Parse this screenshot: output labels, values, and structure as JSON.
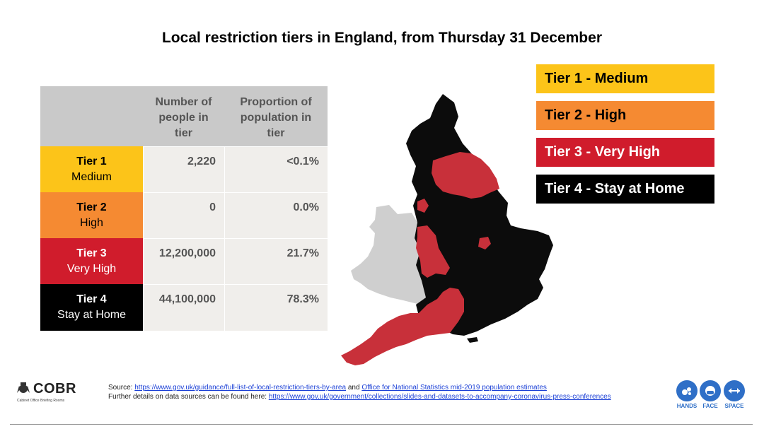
{
  "title": "Local restriction tiers in England, from Thursday 31 December",
  "table": {
    "headers": [
      "",
      "Number of people in tier",
      "Proportion of population in tier"
    ],
    "header_lines": {
      "col2": [
        "Number of",
        "people in",
        "tier"
      ],
      "col3": [
        "Proportion of",
        "population in",
        "tier"
      ]
    },
    "rows": [
      {
        "tier": "Tier 1",
        "name": "Medium",
        "people": "2,220",
        "proportion": "<0.1%",
        "color": "#fcc419",
        "text_color": "#000000"
      },
      {
        "tier": "Tier 2",
        "name": "High",
        "people": "0",
        "proportion": "0.0%",
        "color": "#f58a32",
        "text_color": "#000000"
      },
      {
        "tier": "Tier 3",
        "name": "Very High",
        "people": "12,200,000",
        "proportion": "21.7%",
        "color": "#d01c2c",
        "text_color": "#ffffff"
      },
      {
        "tier": "Tier 4",
        "name": "Stay at Home",
        "people": "44,100,000",
        "proportion": "78.3%",
        "color": "#000000",
        "text_color": "#ffffff"
      }
    ]
  },
  "legend": [
    {
      "label": "Tier 1 - Medium",
      "color": "#fcc419",
      "text_color": "#000000"
    },
    {
      "label": "Tier 2 - High",
      "color": "#f58a32",
      "text_color": "#000000"
    },
    {
      "label": "Tier 3 - Very High",
      "color": "#d01c2c",
      "text_color": "#ffffff"
    },
    {
      "label": "Tier 4 - Stay at Home",
      "color": "#000000",
      "text_color": "#ffffff"
    }
  ],
  "map": {
    "colors": {
      "tier3": "#c8303a",
      "tier4": "#0c0c0c",
      "wales": "#cfcfcf"
    }
  },
  "footer": {
    "logo_name": "COBR",
    "logo_sub": "Cabinet Office Briefing Rooms",
    "source_prefix": "Source: ",
    "source_link1": "https://www.gov.uk/guidance/full-list-of-local-restriction-tiers-by-area",
    "source_and": " and ",
    "source_link2": "Office for National Statistics mid-2019 population estimates",
    "further_prefix": "Further details on data sources can be found here: ",
    "further_link": "https://www.gov.uk/government/collections/slides-and-datasets-to-accompany-coronavirus-press-conferences",
    "badges": [
      "HANDS",
      "FACE",
      "SPACE"
    ]
  }
}
